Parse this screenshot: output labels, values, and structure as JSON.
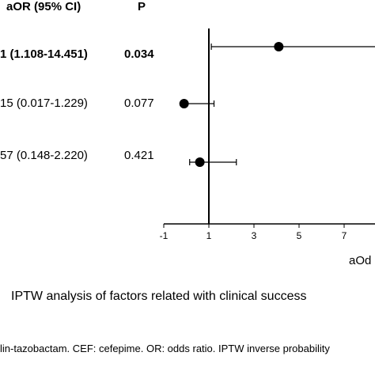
{
  "headers": {
    "aor": "aOR (95% CI)",
    "p": "P"
  },
  "rows": [
    {
      "aor_text": "1 (1.108-14.451)",
      "p_text": "0.034",
      "bold": true
    },
    {
      "aor_text": "15 (0.017-1.229)",
      "p_text": "0.077",
      "bold": false
    },
    {
      "aor_text": "57 (0.148-2.220)",
      "p_text": "0.421",
      "bold": false
    }
  ],
  "chart_data": {
    "type": "scatter",
    "subtype": "forest-plot",
    "xlabel": "aOd",
    "x_ticks": [
      "-1",
      "1",
      "3",
      "5",
      "7"
    ],
    "xlim": [
      -1,
      8.5
    ],
    "reference_line": 1,
    "points": [
      {
        "estimate": 4.1,
        "ci_low": 1.108,
        "ci_high": 14.451
      },
      {
        "estimate": -0.1,
        "ci_low": 0.017,
        "ci_high": 1.229
      },
      {
        "estimate": 0.6,
        "ci_low": 0.148,
        "ci_high": 2.22
      }
    ],
    "colors": {
      "marker": "#000000",
      "line": "#000000"
    }
  },
  "caption": "IPTW analysis of factors related with clinical success",
  "footnote": "lin-tazobactam. CEF: cefepime. OR: odds ratio. IPTW inverse probability"
}
